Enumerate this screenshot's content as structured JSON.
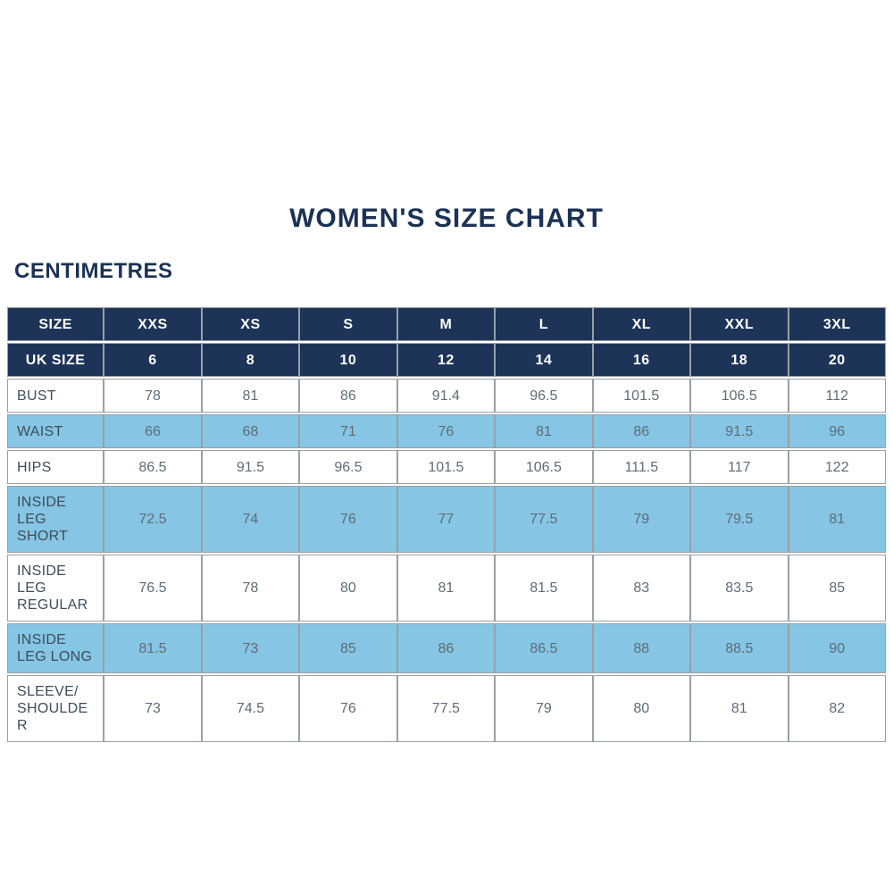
{
  "title": "WOMEN'S SIZE CHART",
  "units_label": "CENTIMETRES",
  "colors": {
    "header_navy": "#1d3458",
    "stripe_blue": "#86c5e4",
    "title_text": "#1b3254",
    "label_text": "#3c4d5a",
    "value_text": "#5f6c76",
    "grid_border": "#99a0a7"
  },
  "chart_data": {
    "type": "table",
    "title": "WOMEN'S SIZE CHART",
    "units": "CENTIMETRES",
    "header_rows": [
      {
        "label": "SIZE",
        "values": [
          "XXS",
          "XS",
          "S",
          "M",
          "L",
          "XL",
          "XXL",
          "3XL"
        ]
      },
      {
        "label": "UK SIZE",
        "values": [
          "6",
          "8",
          "10",
          "12",
          "14",
          "16",
          "18",
          "20"
        ]
      }
    ],
    "rows": [
      {
        "label": "BUST",
        "values": [
          "78",
          "81",
          "86",
          "91.4",
          "96.5",
          "101.5",
          "106.5",
          "112"
        ]
      },
      {
        "label": "WAIST",
        "values": [
          "66",
          "68",
          "71",
          "76",
          "81",
          "86",
          "91.5",
          "96"
        ]
      },
      {
        "label": "HIPS",
        "values": [
          "86.5",
          "91.5",
          "96.5",
          "101.5",
          "106.5",
          "111.5",
          "117",
          "122"
        ]
      },
      {
        "label": "INSIDE LEG SHORT",
        "values": [
          "72.5",
          "74",
          "76",
          "77",
          "77.5",
          "79",
          "79.5",
          "81"
        ]
      },
      {
        "label": "INSIDE LEG REGULAR",
        "values": [
          "76.5",
          "78",
          "80",
          "81",
          "81.5",
          "83",
          "83.5",
          "85"
        ]
      },
      {
        "label": "INSIDE LEG LONG",
        "values": [
          "81.5",
          "73",
          "85",
          "86",
          "86.5",
          "88",
          "88.5",
          "90"
        ]
      },
      {
        "label": "SLEEVE/ SHOULDER",
        "values": [
          "73",
          "74.5",
          "76",
          "77.5",
          "79",
          "80",
          "81",
          "82"
        ]
      }
    ]
  }
}
